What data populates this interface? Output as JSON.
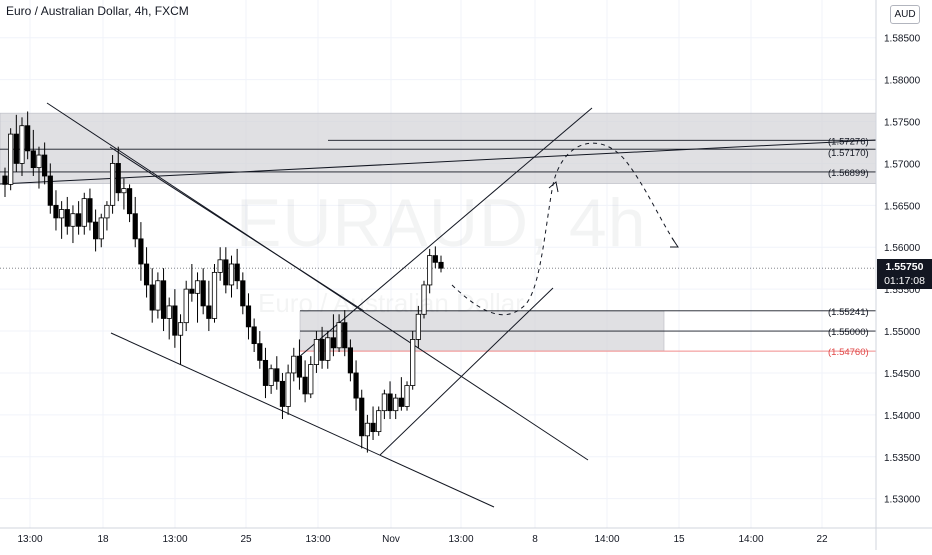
{
  "header": {
    "symbol_title": "Euro / Australian Dollar, 4h, FXCM",
    "currency": "AUD"
  },
  "watermark": {
    "ticker": "EURAUD, 4h",
    "name": "Euro / Australian Dollar"
  },
  "last_price": {
    "value": "1.55750",
    "countdown": "01:17:08"
  },
  "colors": {
    "up_candle": "#ffffff",
    "down_candle": "#000000",
    "zone_fill": "#d5d6da",
    "red_level": "#f7a2a2",
    "grid_line": "#f0f3fa"
  },
  "chart_data": {
    "type": "candlestick",
    "title": "Euro / Australian Dollar, 4h, FXCM",
    "ylim": [
      1.5265,
      1.5895
    ],
    "y_ticks": [
      "1.58500",
      "1.58000",
      "1.57500",
      "1.57000",
      "1.56500",
      "1.56000",
      "1.55500",
      "1.55000",
      "1.54500",
      "1.54000",
      "1.53500",
      "1.53000"
    ],
    "y_tick_values": [
      1.585,
      1.58,
      1.575,
      1.57,
      1.565,
      1.56,
      1.555,
      1.55,
      1.545,
      1.54,
      1.535,
      1.53
    ],
    "x_ticks": [
      "13:00",
      "18",
      "13:00",
      "25",
      "13:00",
      "Nov",
      "13:00",
      "8",
      "14:00",
      "15",
      "14:00",
      "22"
    ],
    "levels": [
      {
        "label": "(1.57276)",
        "value": 1.57276
      },
      {
        "label": "(1.57170)",
        "value": 1.5717
      },
      {
        "label": "(1.56899)",
        "value": 1.56899
      },
      {
        "label": "(1.55241)",
        "value": 1.55241
      },
      {
        "label": "(1.55000)",
        "value": 1.55
      },
      {
        "label": "(1.54760)",
        "value": 1.5476,
        "color": "red"
      }
    ],
    "zones": [
      {
        "from": 1.5676,
        "to": 1.576
      },
      {
        "from": 1.5476,
        "to": 1.5524
      }
    ],
    "candles": [
      [
        1.5685,
        1.5695,
        1.566,
        1.5675
      ],
      [
        1.5675,
        1.5742,
        1.5668,
        1.5735
      ],
      [
        1.5735,
        1.5758,
        1.569,
        1.57
      ],
      [
        1.57,
        1.5755,
        1.5685,
        1.5745
      ],
      [
        1.5745,
        1.5762,
        1.5705,
        1.5715
      ],
      [
        1.5715,
        1.574,
        1.5685,
        1.5695
      ],
      [
        1.5695,
        1.572,
        1.567,
        1.571
      ],
      [
        1.571,
        1.5725,
        1.5675,
        1.5685
      ],
      [
        1.5685,
        1.57,
        1.564,
        1.565
      ],
      [
        1.565,
        1.5668,
        1.562,
        1.5635
      ],
      [
        1.5635,
        1.5655,
        1.561,
        1.5645
      ],
      [
        1.5645,
        1.566,
        1.5615,
        1.5625
      ],
      [
        1.5625,
        1.565,
        1.5605,
        1.564
      ],
      [
        1.564,
        1.5655,
        1.5615,
        1.5625
      ],
      [
        1.5625,
        1.5665,
        1.5615,
        1.5658
      ],
      [
        1.5658,
        1.567,
        1.562,
        1.563
      ],
      [
        1.563,
        1.5645,
        1.5595,
        1.561
      ],
      [
        1.561,
        1.564,
        1.56,
        1.5635
      ],
      [
        1.5635,
        1.5655,
        1.562,
        1.565
      ],
      [
        1.565,
        1.571,
        1.564,
        1.57
      ],
      [
        1.57,
        1.572,
        1.5655,
        1.5665
      ],
      [
        1.5665,
        1.5682,
        1.5645,
        1.567
      ],
      [
        1.567,
        1.5675,
        1.563,
        1.564
      ],
      [
        1.564,
        1.566,
        1.56,
        1.561
      ],
      [
        1.561,
        1.563,
        1.556,
        1.558
      ],
      [
        1.558,
        1.56,
        1.554,
        1.5555
      ],
      [
        1.5555,
        1.5575,
        1.551,
        1.5525
      ],
      [
        1.5525,
        1.557,
        1.5515,
        1.556
      ],
      [
        1.556,
        1.5575,
        1.55,
        1.5515
      ],
      [
        1.5515,
        1.554,
        1.549,
        1.553
      ],
      [
        1.553,
        1.555,
        1.548,
        1.5495
      ],
      [
        1.5495,
        1.552,
        1.546,
        1.551
      ],
      [
        1.551,
        1.556,
        1.55,
        1.555
      ],
      [
        1.555,
        1.558,
        1.5535,
        1.5545
      ],
      [
        1.5545,
        1.557,
        1.551,
        1.556
      ],
      [
        1.556,
        1.5575,
        1.552,
        1.553
      ],
      [
        1.553,
        1.556,
        1.55,
        1.5515
      ],
      [
        1.5515,
        1.558,
        1.551,
        1.557
      ],
      [
        1.557,
        1.56,
        1.556,
        1.5585
      ],
      [
        1.5585,
        1.56,
        1.5545,
        1.5555
      ],
      [
        1.5555,
        1.559,
        1.554,
        1.558
      ],
      [
        1.558,
        1.5598,
        1.555,
        1.556
      ],
      [
        1.556,
        1.557,
        1.552,
        1.553
      ],
      [
        1.553,
        1.5545,
        1.549,
        1.5505
      ],
      [
        1.5505,
        1.5515,
        1.5475,
        1.5485
      ],
      [
        1.5485,
        1.55,
        1.5455,
        1.5465
      ],
      [
        1.5465,
        1.548,
        1.542,
        1.5435
      ],
      [
        1.5435,
        1.546,
        1.5425,
        1.5455
      ],
      [
        1.5455,
        1.547,
        1.543,
        1.544
      ],
      [
        1.544,
        1.545,
        1.5395,
        1.541
      ],
      [
        1.541,
        1.546,
        1.54,
        1.545
      ],
      [
        1.545,
        1.548,
        1.544,
        1.547
      ],
      [
        1.547,
        1.549,
        1.543,
        1.5445
      ],
      [
        1.5445,
        1.5465,
        1.5415,
        1.5425
      ],
      [
        1.5425,
        1.547,
        1.542,
        1.546
      ],
      [
        1.546,
        1.55,
        1.545,
        1.549
      ],
      [
        1.549,
        1.5505,
        1.5455,
        1.5465
      ],
      [
        1.5465,
        1.55,
        1.5455,
        1.5492
      ],
      [
        1.5492,
        1.552,
        1.547,
        1.548
      ],
      [
        1.548,
        1.552,
        1.5475,
        1.551
      ],
      [
        1.551,
        1.5525,
        1.547,
        1.548
      ],
      [
        1.548,
        1.549,
        1.544,
        1.545
      ],
      [
        1.545,
        1.5465,
        1.5405,
        1.542
      ],
      [
        1.542,
        1.543,
        1.536,
        1.5375
      ],
      [
        1.5375,
        1.54,
        1.5355,
        1.539
      ],
      [
        1.539,
        1.541,
        1.537,
        1.538
      ],
      [
        1.538,
        1.541,
        1.5375,
        1.5405
      ],
      [
        1.5405,
        1.543,
        1.5395,
        1.5425
      ],
      [
        1.5425,
        1.544,
        1.5395,
        1.5405
      ],
      [
        1.5405,
        1.5425,
        1.5395,
        1.542
      ],
      [
        1.542,
        1.5445,
        1.5405,
        1.541
      ],
      [
        1.541,
        1.544,
        1.5405,
        1.5435
      ],
      [
        1.5435,
        1.55,
        1.543,
        1.549
      ],
      [
        1.549,
        1.553,
        1.548,
        1.552
      ],
      [
        1.552,
        1.556,
        1.5515,
        1.5555
      ],
      [
        1.5555,
        1.5598,
        1.5545,
        1.559
      ],
      [
        1.559,
        1.5601,
        1.5575,
        1.5582
      ],
      [
        1.5582,
        1.559,
        1.557,
        1.5575
      ]
    ],
    "annotations": "trend lines, channel lines and dashed projected path"
  }
}
